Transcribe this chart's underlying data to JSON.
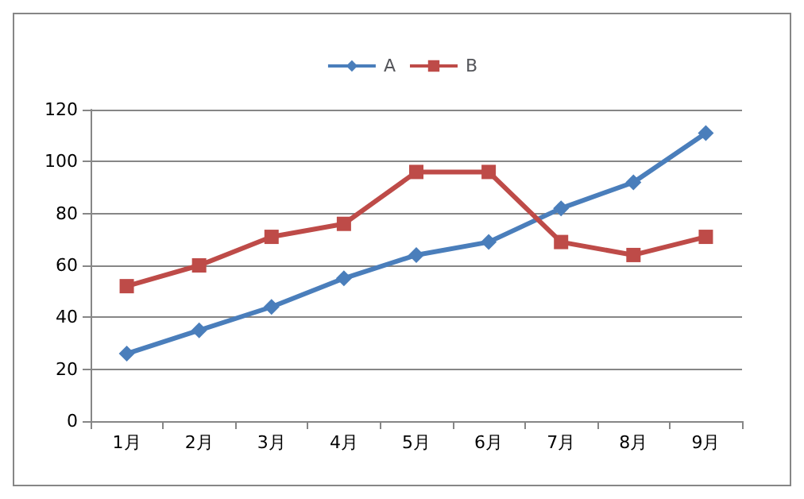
{
  "chart_data": {
    "type": "line",
    "categories": [
      "1月",
      "2月",
      "3月",
      "4月",
      "5月",
      "6月",
      "7月",
      "8月",
      "9月"
    ],
    "series": [
      {
        "name": "A",
        "color": "#4a7ebb",
        "marker": "diamond",
        "values": [
          26,
          35,
          44,
          55,
          64,
          69,
          82,
          92,
          111
        ]
      },
      {
        "name": "B",
        "color": "#be4b48",
        "marker": "square",
        "values": [
          52,
          60,
          71,
          76,
          96,
          96,
          69,
          64,
          71
        ]
      }
    ],
    "ylim": [
      0,
      120
    ],
    "yticks": [
      0,
      20,
      40,
      60,
      80,
      100,
      120
    ],
    "grid": "y",
    "legend": "top"
  }
}
